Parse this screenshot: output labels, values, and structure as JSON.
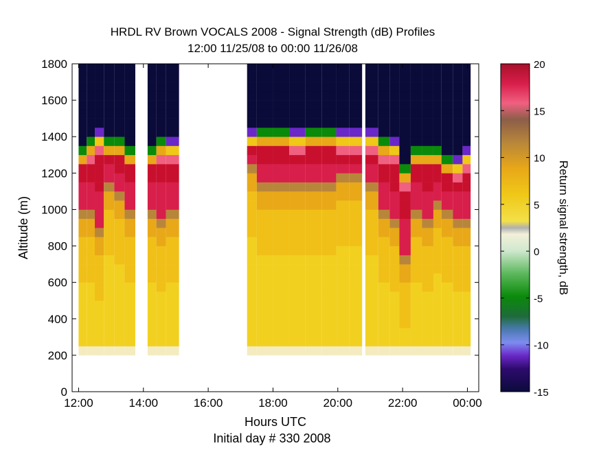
{
  "chart_data": {
    "type": "heatmap",
    "title": "HRDL RV Brown VOCALS 2008 - Signal Strength (dB) Profiles",
    "subtitle": "12:00 11/25/08 to 00:00 11/26/08",
    "xlabel": "Hours UTC",
    "xlabel2": "Initial day # 330  2008",
    "ylabel": "Altitude (m)",
    "colorbar_label": "Return signal strength, dB",
    "x_unit": "hours",
    "xlim": [
      11.8,
      24.35
    ],
    "ylim": [
      0,
      1800
    ],
    "x_ticks": [
      12,
      14,
      16,
      18,
      20,
      22,
      24
    ],
    "x_tick_labels": [
      "12:00",
      "14:00",
      "16:00",
      "18:00",
      "20:00",
      "22:00",
      "00:00"
    ],
    "y_ticks": [
      0,
      200,
      400,
      600,
      800,
      1000,
      1200,
      1400,
      1600,
      1800
    ],
    "y_tick_labels": [
      "0",
      "200",
      "400",
      "600",
      "800",
      "1000",
      "1200",
      "1400",
      "1600",
      "1800"
    ],
    "clim": [
      -15,
      20
    ],
    "colorbar_ticks": [
      -15,
      -10,
      -5,
      0,
      5,
      10,
      15,
      20
    ],
    "colorbar_tick_labels": [
      "-15",
      "-10",
      "-5",
      "0",
      "5",
      "10",
      "15",
      "20"
    ],
    "data_bottom_altitude": 200,
    "profiles": [
      {
        "t0": 12.0,
        "t1": 12.25,
        "top": 1360,
        "cloud_base": 1000
      },
      {
        "t0": 12.25,
        "t1": 12.5,
        "top": 1400,
        "cloud_base": 980
      },
      {
        "t0": 12.5,
        "t1": 12.78,
        "top": 1430,
        "cloud_base": 900
      },
      {
        "t0": 12.78,
        "t1": 13.1,
        "top": 1410,
        "cloud_base": 1160
      },
      {
        "t0": 13.1,
        "t1": 13.42,
        "top": 1400,
        "cloud_base": 1100
      },
      {
        "t0": 13.42,
        "t1": 13.75,
        "top": 1370,
        "cloud_base": 1020
      },
      {
        "t0": 14.13,
        "t1": 14.4,
        "top": 1370,
        "cloud_base": 1000
      },
      {
        "t0": 14.4,
        "t1": 14.7,
        "top": 1400,
        "cloud_base": 950
      },
      {
        "t0": 14.7,
        "t1": 15.1,
        "top": 1380,
        "cloud_base": 1020
      },
      {
        "t0": 17.2,
        "t1": 17.5,
        "top": 1440,
        "cloud_base": 1250
      },
      {
        "t0": 17.5,
        "t1": 18.0,
        "top": 1460,
        "cloud_base": 1170
      },
      {
        "t0": 18.0,
        "t1": 18.5,
        "top": 1450,
        "cloud_base": 1170
      },
      {
        "t0": 18.5,
        "t1": 19.0,
        "top": 1440,
        "cloud_base": 1170
      },
      {
        "t0": 19.0,
        "t1": 19.5,
        "top": 1460,
        "cloud_base": 1170
      },
      {
        "t0": 19.5,
        "t1": 19.95,
        "top": 1460,
        "cloud_base": 1170
      },
      {
        "t0": 19.95,
        "t1": 20.35,
        "top": 1430,
        "cloud_base": 1210
      },
      {
        "t0": 20.35,
        "t1": 20.75,
        "top": 1430,
        "cloud_base": 1200
      },
      {
        "t0": 20.85,
        "t1": 21.25,
        "top": 1440,
        "cloud_base": 1150
      },
      {
        "t0": 21.25,
        "t1": 21.6,
        "top": 1400,
        "cloud_base": 980
      },
      {
        "t0": 21.6,
        "t1": 21.9,
        "top": 1380,
        "cloud_base": 960
      },
      {
        "t0": 21.9,
        "t1": 22.25,
        "top": 1250,
        "cloud_base": 770
      },
      {
        "t0": 22.25,
        "t1": 22.6,
        "top": 1370,
        "cloud_base": 1000
      },
      {
        "t0": 22.6,
        "t1": 22.95,
        "top": 1360,
        "cloud_base": 950
      },
      {
        "t0": 22.95,
        "t1": 23.2,
        "top": 1350,
        "cloud_base": 1050
      },
      {
        "t0": 23.2,
        "t1": 23.55,
        "top": 1310,
        "cloud_base": 1000
      },
      {
        "t0": 23.55,
        "t1": 23.85,
        "top": 1290,
        "cloud_base": 960
      },
      {
        "t0": 23.85,
        "t1": 24.1,
        "top": 1330,
        "cloud_base": 970
      }
    ]
  }
}
